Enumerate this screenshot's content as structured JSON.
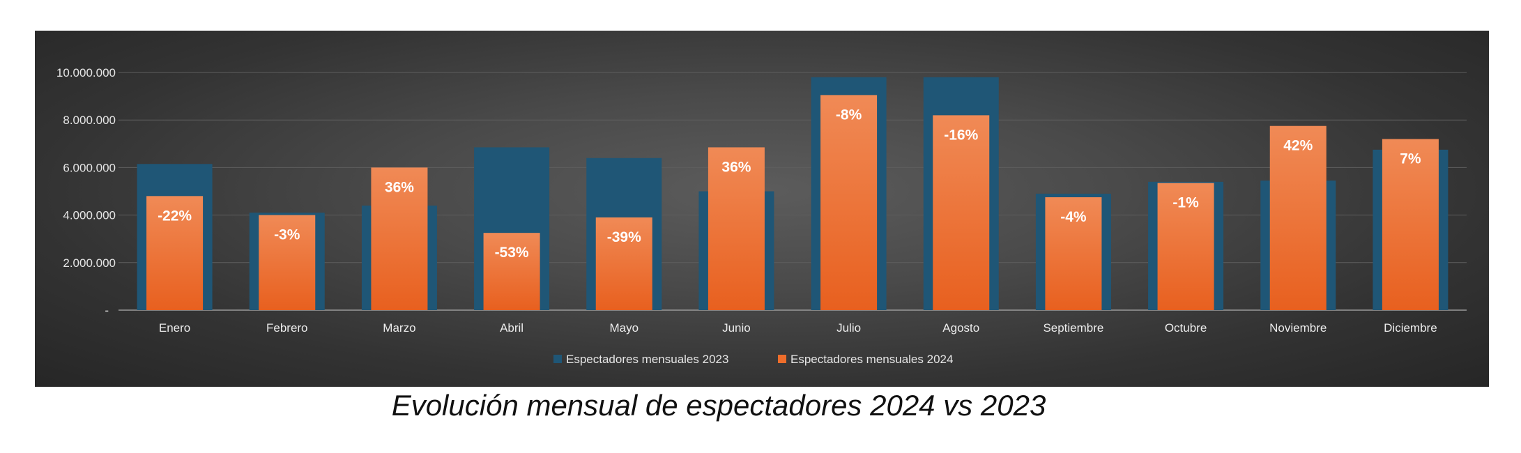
{
  "caption": "Evolución mensual de espectadores 2024 vs 2023",
  "chart_data": {
    "type": "bar",
    "title": "",
    "xlabel": "",
    "ylabel": "",
    "ylim": [
      0,
      10000000
    ],
    "y_ticks": [
      "-",
      "2.000.000",
      "4.000.000",
      "6.000.000",
      "8.000.000",
      "10.000.000"
    ],
    "categories": [
      "Enero",
      "Febrero",
      "Marzo",
      "Abril",
      "Mayo",
      "Junio",
      "Julio",
      "Agosto",
      "Septiembre",
      "Octubre",
      "Noviembre",
      "Diciembre"
    ],
    "series": [
      {
        "name": "Espectadores mensuales 2023",
        "color": "#1f5676",
        "values": [
          6150000,
          4100000,
          4400000,
          6850000,
          6400000,
          5000000,
          9800000,
          9800000,
          4900000,
          5400000,
          5450000,
          6750000
        ]
      },
      {
        "name": "Espectadores mensuales 2024",
        "color": "#ee6d2b",
        "values": [
          4800000,
          4000000,
          6000000,
          3250000,
          3900000,
          6850000,
          9050000,
          8200000,
          4750000,
          5350000,
          7750000,
          7200000
        ]
      }
    ],
    "data_labels": [
      "-22%",
      "-3%",
      "36%",
      "-53%",
      "-39%",
      "36%",
      "-8%",
      "-16%",
      "-4%",
      "-1%",
      "42%",
      "7%"
    ],
    "gridlines": true,
    "legend_position": "bottom"
  }
}
